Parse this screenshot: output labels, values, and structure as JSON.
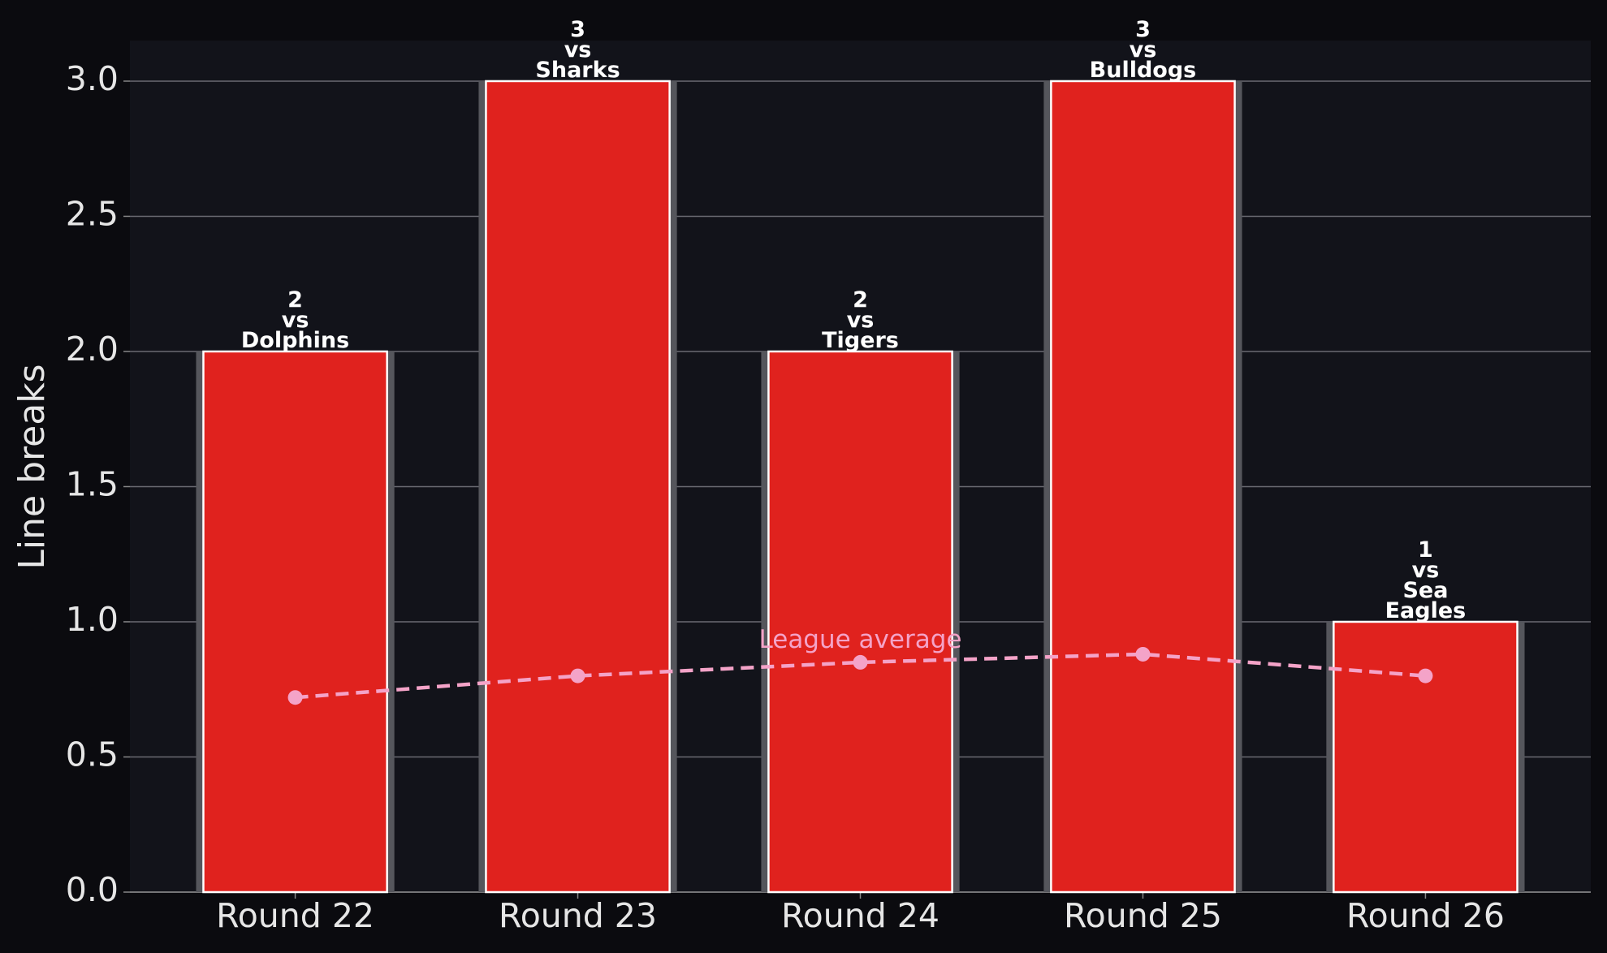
{
  "chart_data": {
    "type": "bar",
    "y_label": "Line breaks",
    "categories": [
      "Round 22",
      "Round 23",
      "Round 24",
      "Round 25",
      "Round 26"
    ],
    "values": [
      2,
      3,
      2,
      3,
      1
    ],
    "value_labels": [
      "2\nvs\nDolphins",
      "3\nvs\nSharks",
      "2\nvs\nTigers",
      "3\nvs\nBulldogs",
      "1\nvs\nSea\nEagles"
    ],
    "color": "#e0221e",
    "average": {
      "label": "League average",
      "color": "#f4a3c8",
      "values": [
        0.72,
        0.8,
        0.85,
        0.88,
        0.8
      ]
    },
    "ylim": [
      0,
      3.15
    ],
    "yticks": [
      {
        "value": 0,
        "label": "0.0"
      },
      0.5,
      {
        "value": 1,
        "label": "1.0"
      },
      1.5,
      {
        "value": 2,
        "label": "2.0"
      },
      2.5,
      {
        "value": 3,
        "label": "3.0"
      }
    ],
    "grid": true
  }
}
